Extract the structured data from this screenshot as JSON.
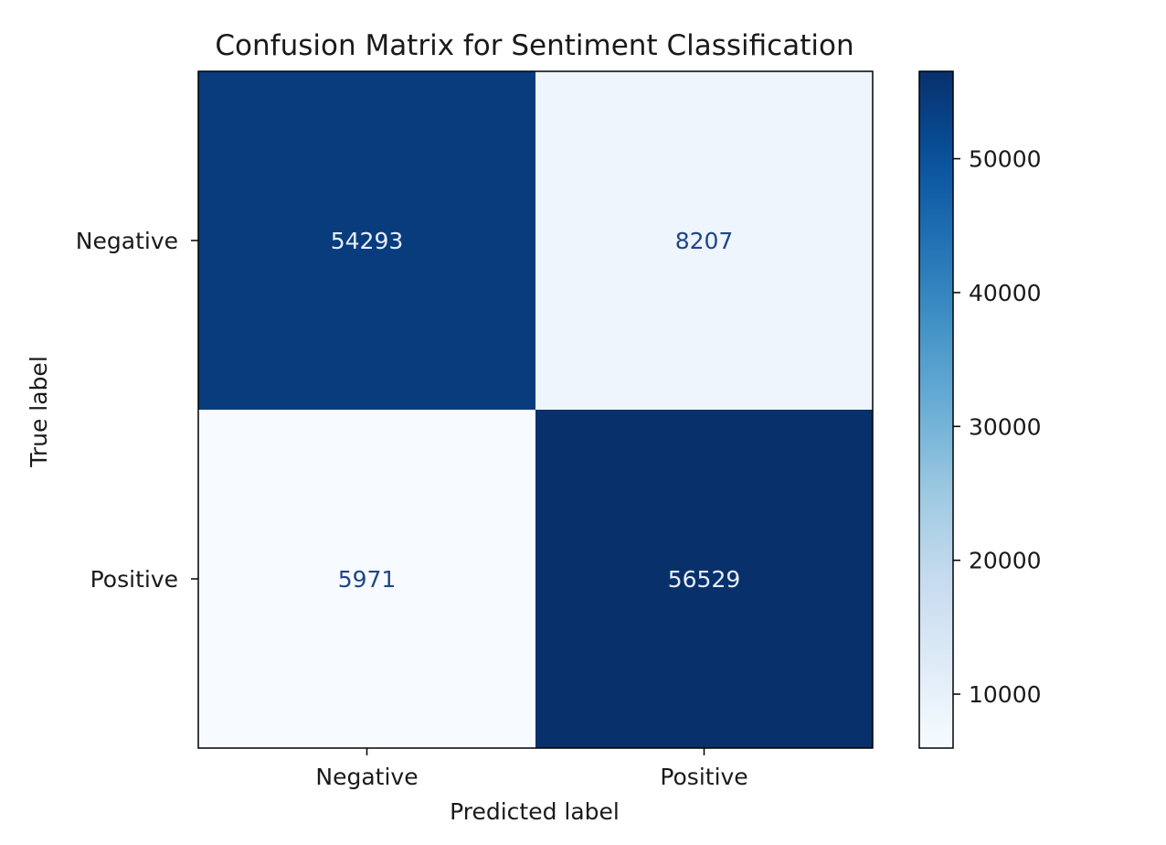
{
  "chart_data": {
    "type": "heatmap",
    "title": "Confusion Matrix for Sentiment Classification",
    "xlabel": "Predicted label",
    "ylabel": "True label",
    "x_categories": [
      "Negative",
      "Positive"
    ],
    "y_categories": [
      "Negative",
      "Positive"
    ],
    "values": [
      [
        54293,
        8207
      ],
      [
        5971,
        56529
      ]
    ],
    "value_labels": [
      [
        "54293",
        "8207"
      ],
      [
        "5971",
        "56529"
      ]
    ],
    "colormap": "Blues",
    "color_range": [
      5971,
      56529
    ],
    "colorbar": {
      "ticks": [
        10000,
        20000,
        30000,
        40000,
        50000
      ],
      "tick_labels": [
        "10000",
        "20000",
        "30000",
        "40000",
        "50000"
      ]
    },
    "text_colors": {
      "dark_cell": "#e8eef7",
      "light_cell": "#1f4687"
    }
  }
}
